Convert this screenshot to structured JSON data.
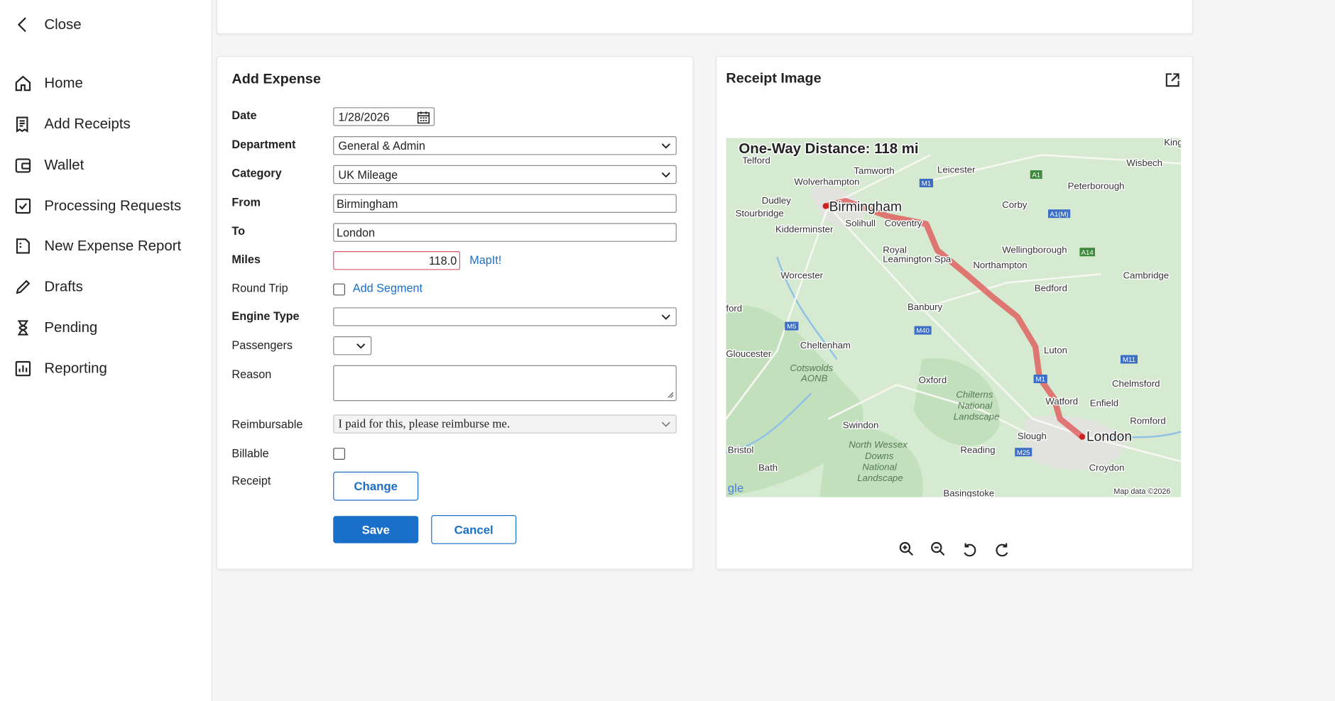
{
  "sidebar": {
    "close": "Close",
    "items": [
      "Home",
      "Add Receipts",
      "Wallet",
      "Processing Requests",
      "New Expense Report",
      "Drafts",
      "Pending",
      "Reporting"
    ]
  },
  "form": {
    "title": "Add Expense",
    "fields": [
      {
        "label": "Date",
        "value": "1/28/2026"
      },
      {
        "label": "Department",
        "value": "General & Admin"
      },
      {
        "label": "Category",
        "value": "UK Mileage"
      },
      {
        "label": "From",
        "value": "Birmingham"
      },
      {
        "label": "To",
        "value": "London"
      },
      {
        "label": "Miles",
        "value": "118.0"
      },
      {
        "label": "Round Trip"
      },
      {
        "label": "Engine Type"
      },
      {
        "label": "Passengers"
      },
      {
        "label": "Reason"
      },
      {
        "label": "Reimbursable",
        "value": "I paid for this, please reimburse me."
      },
      {
        "label": "Billable"
      },
      {
        "label": "Receipt"
      }
    ],
    "links": {
      "mapit": "MapIt!",
      "add_segment": "Add Segment"
    },
    "buttons": {
      "change": "Change",
      "save": "Save",
      "cancel": "Cancel"
    }
  },
  "receipt": {
    "title": "Receipt Image",
    "map": {
      "headline": "One-Way Distance: 118 mi",
      "places": [
        "Telford",
        "Tamworth",
        "Leicester",
        "Wolverhampton",
        "Peterborough",
        "Wisbech",
        "King",
        "Dudley",
        "Birmingham",
        "Corby",
        "Stourbridge",
        "Solihull",
        "Coventry",
        "Kidderminster",
        "Wellingborough",
        "Royal",
        "Leamington Spa",
        "Northampton",
        "Worcester",
        "Cambridge",
        "Bedford",
        "Banbury",
        "ford",
        "Cheltenham",
        "Gloucester",
        "Luton",
        "Oxford",
        "Chelmsford",
        "Watford",
        "Enfield",
        "Romford",
        "Swindon",
        "London",
        "Slough",
        "Bristol",
        "Reading",
        "Bath",
        "Croydon",
        "Basingstoke"
      ],
      "areas": [
        "Cotswolds",
        "AONB",
        "Chilterns",
        "National",
        "Landscape",
        "North Wessex",
        "Downs",
        "National",
        "Landscape"
      ],
      "roads": [
        "M1",
        "A1",
        "A1(M)",
        "A14",
        "M5",
        "M40",
        "M11",
        "M1",
        "M25"
      ],
      "logo": "gle",
      "attribution": "Map data ©2026"
    }
  }
}
